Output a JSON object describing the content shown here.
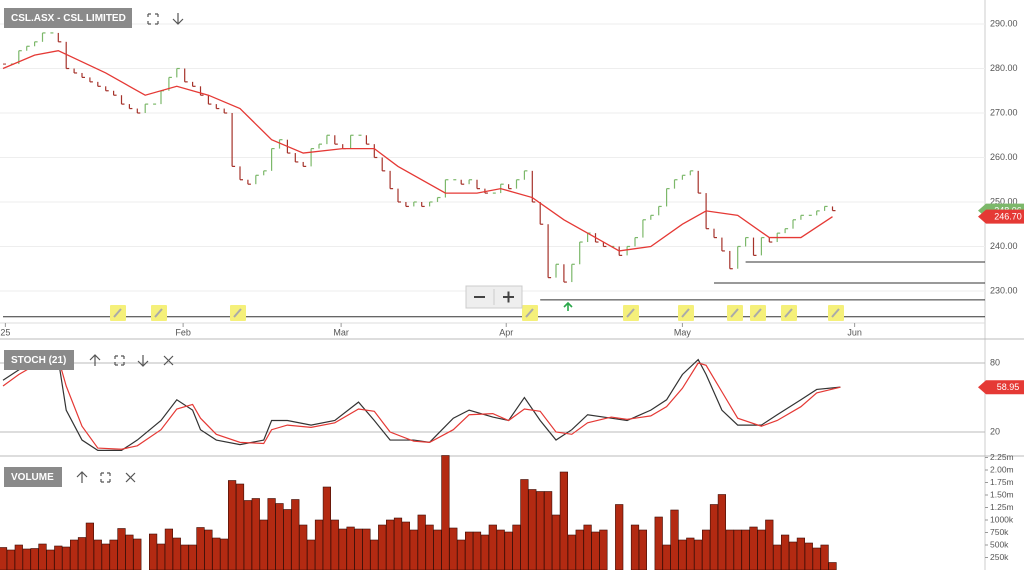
{
  "chart_data": [
    {
      "type": "stock",
      "title": "CSL.ASX - CSL LIMITED",
      "up_color": "#7cb86a",
      "down_color": "#a5322a",
      "close": [
        281,
        281,
        284,
        285,
        286,
        288,
        288,
        286,
        280,
        279,
        278,
        277,
        276,
        275,
        274,
        272,
        271,
        270,
        272,
        272,
        275,
        278,
        280,
        277,
        276,
        274,
        272,
        271,
        270,
        258,
        255,
        254,
        256,
        257,
        262,
        264,
        261,
        259,
        258,
        262,
        263,
        265,
        263,
        262,
        265,
        265,
        263,
        260,
        257,
        253,
        250,
        249,
        250,
        249,
        250,
        251,
        255,
        255,
        254,
        255,
        253,
        252,
        252,
        254,
        253,
        255,
        257,
        250,
        245,
        233,
        236,
        232,
        236,
        241,
        243,
        241,
        240,
        240,
        238,
        240,
        242,
        246,
        247,
        249,
        253,
        255,
        256,
        257,
        252,
        244,
        242,
        239,
        235,
        240,
        242,
        238,
        242,
        241,
        243,
        244,
        246,
        247,
        247,
        248,
        249,
        248.06
      ],
      "series": [
        {
          "color": "#e53935",
          "x": [
            0,
            4,
            7,
            13,
            18,
            22,
            26,
            30,
            34,
            38,
            43,
            47,
            50,
            56,
            60,
            63,
            67,
            71,
            75,
            78,
            82,
            86,
            89,
            93,
            97,
            101,
            105
          ],
          "values": [
            280,
            283,
            284,
            279,
            274,
            276,
            274,
            271,
            264,
            261,
            262,
            262,
            258,
            252,
            252,
            253,
            251,
            246,
            242,
            239,
            240,
            245,
            248,
            247,
            242,
            242,
            246.7
          ]
        }
      ],
      "levels": [
        {
          "value": 236.5,
          "start": 94
        },
        {
          "value": 231.8,
          "start": 90
        },
        {
          "value": 228,
          "start": 68
        },
        {
          "value": 224.2,
          "start": 0
        }
      ],
      "last_price": 248.06,
      "last_ma": {
        "value": 246.7,
        "label": "246.70"
      },
      "ylim": [
        222.8,
        295.4
      ],
      "yticks": [
        {
          "value": 230,
          "label": "230.00"
        },
        {
          "value": 240,
          "label": "240.00"
        },
        {
          "value": 250,
          "label": "250.00"
        },
        {
          "value": 260,
          "label": "260.00"
        },
        {
          "value": 270,
          "label": "270.00"
        },
        {
          "value": 280,
          "label": "280.00"
        },
        {
          "value": 290,
          "label": "290.00"
        }
      ],
      "xticks": [
        {
          "value": 0.3,
          "label": "25"
        },
        {
          "value": 22.8,
          "label": "Feb"
        },
        {
          "value": 42.8,
          "label": "Mar"
        },
        {
          "value": 63.7,
          "label": "Apr"
        },
        {
          "value": 86,
          "label": "May"
        },
        {
          "value": 107.8,
          "label": "Jun"
        }
      ],
      "grid": true
    },
    {
      "type": "line",
      "title": "STOCH (21)",
      "x": [
        0,
        2,
        5,
        7,
        8,
        10,
        12,
        15,
        17,
        20,
        22,
        24,
        25,
        27,
        30,
        33,
        34,
        36,
        39,
        42,
        45,
        47,
        49,
        52,
        54,
        57,
        59,
        62,
        64,
        66,
        68,
        70,
        72,
        74,
        77,
        79,
        82,
        84,
        86,
        88,
        89,
        91,
        93,
        96,
        98,
        101,
        103,
        106
      ],
      "series": [
        {
          "color": "#333333",
          "values": [
            65,
            74,
            87,
            83,
            39,
            13,
            4,
            4,
            13,
            30,
            48,
            39,
            22,
            13,
            9,
            13,
            30,
            30,
            26,
            30,
            46,
            30,
            13,
            13,
            11,
            32,
            39,
            33,
            30,
            50,
            30,
            13,
            22,
            35,
            32,
            30,
            39,
            48,
            70,
            83,
            70,
            39,
            26,
            26,
            35,
            48,
            57,
            59
          ]
        },
        {
          "color": "#e53935",
          "values": [
            60,
            70,
            82,
            84,
            60,
            25,
            6,
            5,
            8,
            22,
            40,
            44,
            32,
            18,
            11,
            10,
            22,
            26,
            24,
            28,
            40,
            38,
            20,
            12,
            11,
            22,
            35,
            36,
            30,
            40,
            38,
            20,
            18,
            28,
            33,
            31,
            34,
            42,
            58,
            80,
            78,
            55,
            32,
            25,
            30,
            42,
            54,
            58.95
          ]
        }
      ],
      "last_value": 58.95,
      "ylim": [
        0,
        100
      ],
      "yticks": [
        20,
        80
      ]
    },
    {
      "type": "bar",
      "title": "VOLUME",
      "color": "#b32a12",
      "values": [
        450000,
        400000,
        500000,
        420000,
        430000,
        520000,
        400000,
        480000,
        460000,
        600000,
        650000,
        940000,
        600000,
        520000,
        600000,
        830000,
        700000,
        620000,
        null,
        720000,
        520000,
        820000,
        640000,
        500000,
        500000,
        850000,
        800000,
        640000,
        620000,
        1790000,
        1720000,
        1390000,
        1430000,
        1000000,
        1430000,
        1330000,
        1210000,
        1410000,
        900000,
        600000,
        1000000,
        1660000,
        1000000,
        820000,
        860000,
        820000,
        820000,
        600000,
        900000,
        1000000,
        1040000,
        960000,
        800000,
        1100000,
        900000,
        800000,
        2290000,
        840000,
        600000,
        760000,
        760000,
        700000,
        900000,
        800000,
        760000,
        900000,
        1810000,
        1610000,
        1570000,
        1570000,
        1100000,
        1960000,
        700000,
        800000,
        900000,
        760000,
        800000,
        null,
        1310000,
        null,
        900000,
        800000,
        null,
        1060000,
        500000,
        1200000,
        600000,
        640000,
        600000,
        800000,
        1310000,
        1510000,
        800000,
        800000,
        800000,
        860000,
        800000,
        1000000,
        500000,
        700000,
        560000,
        640000,
        540000,
        440000,
        500000,
        150000
      ],
      "ylim": [
        0,
        2300000
      ],
      "yticks": [
        {
          "value": 250000,
          "label": "250k"
        },
        {
          "value": 500000,
          "label": "500k"
        },
        {
          "value": 750000,
          "label": "750k"
        },
        {
          "value": 1000000,
          "label": "1000k"
        },
        {
          "value": 1250000,
          "label": "1.25m"
        },
        {
          "value": 1500000,
          "label": "1.50m"
        },
        {
          "value": 1750000,
          "label": "1.75m"
        },
        {
          "value": 2000000,
          "label": "2.00m"
        },
        {
          "value": 2250000,
          "label": "2.25m"
        }
      ]
    }
  ]
}
